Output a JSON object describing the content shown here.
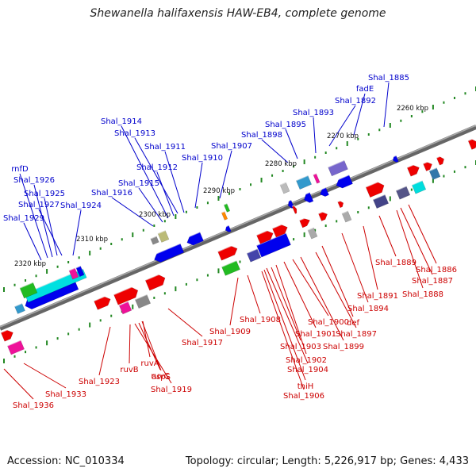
{
  "title": "Shewanella halifaxensis HAW-EB4, complete genome",
  "accession": "Accession: NC_010334",
  "topology": "Topology: circular; Length: 5,226,917 bp; Genes: 4,433",
  "colors": {
    "backbone": "#777777",
    "tick": "#228822",
    "top_strand_label": "#0000cc",
    "bottom_strand_label": "#cc0000",
    "blue_gene": "#0000ee",
    "red_gene": "#ee0000"
  },
  "kbp_labels": [
    "2260 kbp",
    "2270 kbp",
    "2280 kbp",
    "2290 kbp",
    "2300 kbp",
    "2310 kbp",
    "2320 kbp"
  ],
  "top_labels": [
    "Shal_1885",
    "fadE",
    "Shal_1892",
    "Shal_1893",
    "Shal_1895",
    "Shal_1898",
    "Shal_1907",
    "Shal_1910",
    "Shal_1911",
    "Shal_1912",
    "Shal_1913",
    "Shal_1914",
    "Shal_1915",
    "Shal_1916",
    "Shal_1924",
    "Shal_1927",
    "Shal_1925",
    "Shal_1926",
    "rnfD",
    "Shal_1929"
  ],
  "bottom_labels": [
    "Shal_1886",
    "Shal_1887",
    "Shal_1888",
    "Shal_1889",
    "Shal_1891",
    "Shal_1894",
    "Shal_1897",
    "def",
    "Shal_1899",
    "Shal_1900",
    "Shal_1901",
    "Shal_1902",
    "Shal_1903",
    "Shal_1904",
    "thiH",
    "Shal_1906",
    "Shal_1908",
    "Shal_1909",
    "Shal_1917",
    "aspS",
    "Shal_1919",
    "ruvC",
    "ruvA",
    "ruvB",
    "Shal_1923",
    "Shal_1933",
    "Shal_1936"
  ]
}
